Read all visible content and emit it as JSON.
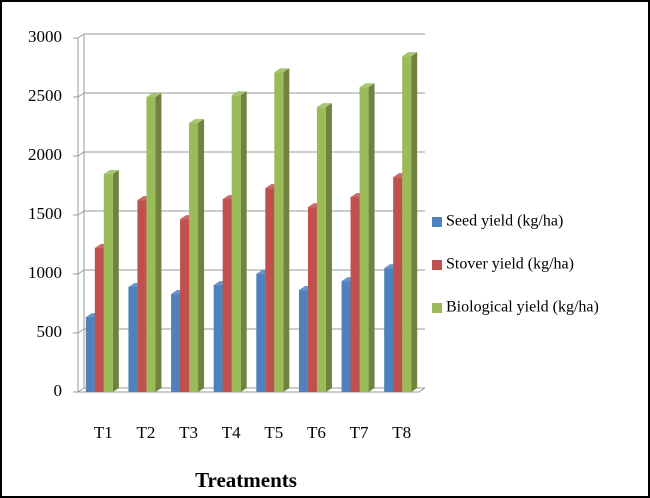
{
  "chart_data": {
    "type": "bar",
    "x_label": "Treatments",
    "categories": [
      "T1",
      "T2",
      "T3",
      "T4",
      "T5",
      "T6",
      "T7",
      "T8"
    ],
    "series": [
      {
        "name": "Seed yield (kg/ha)",
        "color": "#4f81bd",
        "values": [
          635,
          890,
          830,
          906,
          1000,
          864,
          940,
          1050
        ]
      },
      {
        "name": "Stover yield (kg/ha)",
        "color": "#c0504d",
        "values": [
          1220,
          1626,
          1465,
          1635,
          1728,
          1567,
          1652,
          1821
        ]
      },
      {
        "name": "Biological yield (kg/ha)",
        "color": "#9bbb59",
        "values": [
          1847,
          2500,
          2280,
          2515,
          2710,
          2414,
          2583,
          2846
        ]
      }
    ],
    "ylim": [
      0,
      3000
    ],
    "yticks": [
      0,
      500,
      1000,
      1500,
      2000,
      2500,
      3000
    ],
    "grid": true,
    "legend": "right"
  }
}
